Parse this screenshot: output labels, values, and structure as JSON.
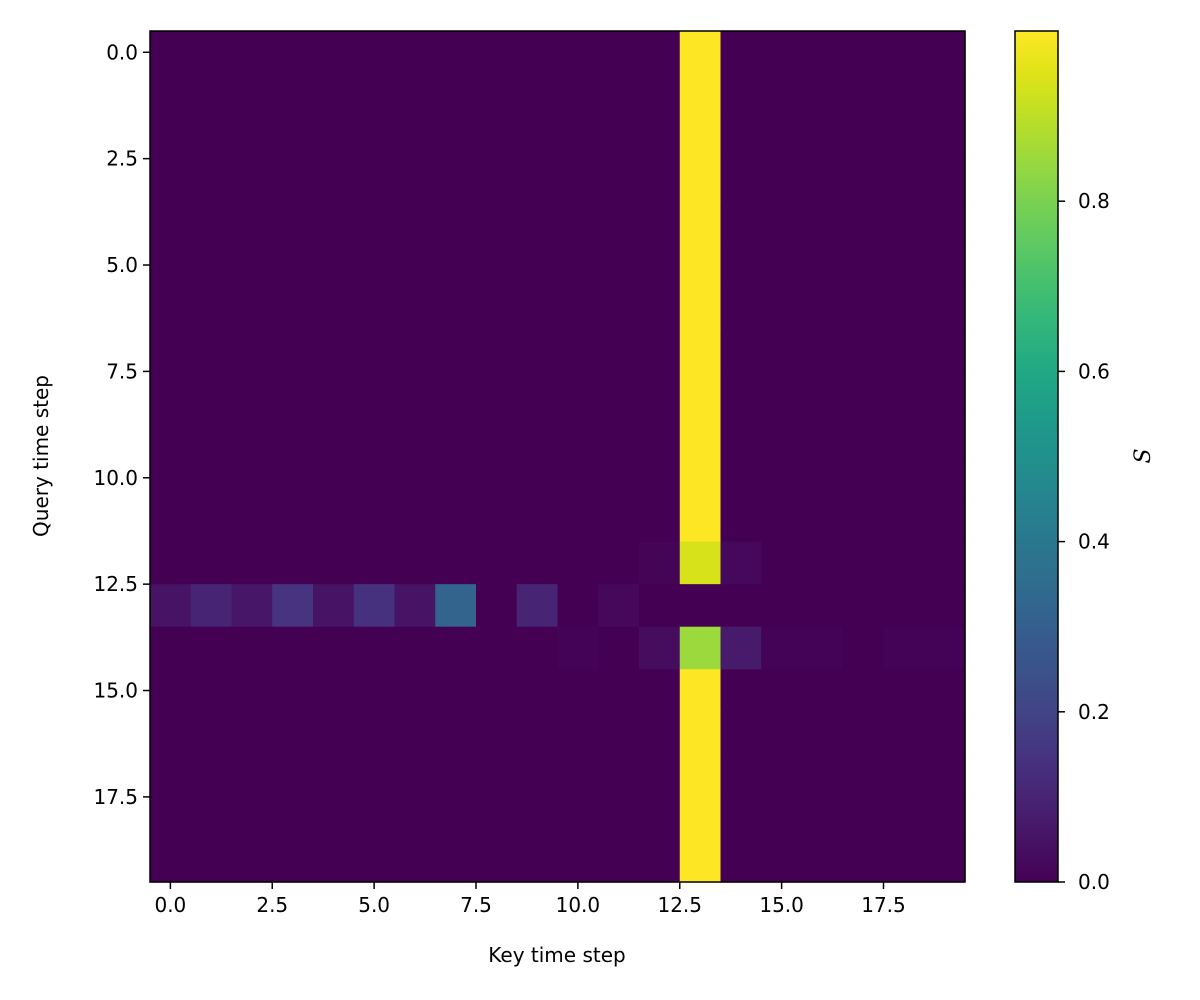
{
  "chart_data": {
    "type": "heatmap",
    "title": "",
    "xlabel": "Key time step",
    "ylabel": "Query time step",
    "colorbar_label": "S",
    "colormap": "viridis",
    "x_range": [
      -0.5,
      19.5
    ],
    "y_range": [
      -0.5,
      19.5
    ],
    "y_inverted": true,
    "x_ticks": [
      "0.0",
      "2.5",
      "5.0",
      "7.5",
      "10.0",
      "12.5",
      "15.0",
      "17.5"
    ],
    "y_ticks": [
      "0.0",
      "2.5",
      "5.0",
      "7.5",
      "10.0",
      "12.5",
      "15.0",
      "17.5"
    ],
    "colorbar_range": [
      0.0,
      1.0
    ],
    "colorbar_ticks": [
      "0.0",
      "0.2",
      "0.4",
      "0.6",
      "0.8"
    ],
    "grid": false,
    "values": [
      [
        0,
        0,
        0,
        0,
        0,
        0,
        0,
        0,
        0,
        0,
        0,
        0,
        0,
        1.0,
        0,
        0,
        0,
        0,
        0,
        0
      ],
      [
        0,
        0,
        0,
        0,
        0,
        0,
        0,
        0,
        0,
        0,
        0,
        0,
        0,
        1.0,
        0,
        0,
        0,
        0,
        0,
        0
      ],
      [
        0,
        0,
        0,
        0,
        0,
        0,
        0,
        0,
        0,
        0,
        0,
        0,
        0,
        1.0,
        0,
        0,
        0,
        0,
        0,
        0
      ],
      [
        0,
        0,
        0,
        0,
        0,
        0,
        0,
        0,
        0,
        0,
        0,
        0,
        0,
        1.0,
        0,
        0,
        0,
        0,
        0,
        0
      ],
      [
        0,
        0,
        0,
        0,
        0,
        0,
        0,
        0,
        0,
        0,
        0,
        0,
        0,
        1.0,
        0,
        0,
        0,
        0,
        0,
        0
      ],
      [
        0,
        0,
        0,
        0,
        0,
        0,
        0,
        0,
        0,
        0,
        0,
        0,
        0,
        1.0,
        0,
        0,
        0,
        0,
        0,
        0
      ],
      [
        0,
        0,
        0,
        0,
        0,
        0,
        0,
        0,
        0,
        0,
        0,
        0,
        0,
        1.0,
        0,
        0,
        0,
        0,
        0,
        0
      ],
      [
        0,
        0,
        0,
        0,
        0,
        0,
        0,
        0,
        0,
        0,
        0,
        0,
        0,
        1.0,
        0,
        0,
        0,
        0,
        0,
        0
      ],
      [
        0,
        0,
        0,
        0,
        0,
        0,
        0,
        0,
        0,
        0,
        0,
        0,
        0,
        1.0,
        0,
        0,
        0,
        0,
        0,
        0
      ],
      [
        0,
        0,
        0,
        0,
        0,
        0,
        0,
        0,
        0,
        0,
        0,
        0,
        0,
        1.0,
        0,
        0,
        0,
        0,
        0,
        0
      ],
      [
        0,
        0,
        0,
        0,
        0,
        0,
        0,
        0,
        0,
        0,
        0,
        0,
        0,
        1.0,
        0,
        0,
        0,
        0,
        0,
        0
      ],
      [
        0,
        0,
        0,
        0,
        0,
        0,
        0,
        0,
        0,
        0,
        0,
        0,
        0,
        1.0,
        0,
        0,
        0,
        0,
        0,
        0
      ],
      [
        0,
        0,
        0,
        0,
        0,
        0,
        0,
        0,
        0,
        0,
        0,
        0,
        0.01,
        0.94,
        0.02,
        0,
        0,
        0,
        0,
        0
      ],
      [
        0.05,
        0.1,
        0.06,
        0.15,
        0.05,
        0.14,
        0.05,
        0.32,
        0.0,
        0.1,
        0.0,
        0.02,
        0,
        0,
        0,
        0,
        0,
        0,
        0,
        0
      ],
      [
        0,
        0,
        0,
        0,
        0,
        0,
        0,
        0,
        0,
        0,
        0.005,
        0,
        0.03,
        0.85,
        0.07,
        0.005,
        0.005,
        0,
        0.005,
        0.005
      ],
      [
        0,
        0,
        0,
        0,
        0,
        0,
        0,
        0,
        0,
        0,
        0,
        0,
        0,
        1.0,
        0,
        0,
        0,
        0,
        0,
        0
      ],
      [
        0,
        0,
        0,
        0,
        0,
        0,
        0,
        0,
        0,
        0,
        0,
        0,
        0,
        1.0,
        0,
        0,
        0,
        0,
        0,
        0
      ],
      [
        0,
        0,
        0,
        0,
        0,
        0,
        0,
        0,
        0,
        0,
        0,
        0,
        0,
        1.0,
        0,
        0,
        0,
        0,
        0,
        0
      ],
      [
        0,
        0,
        0,
        0,
        0,
        0,
        0,
        0,
        0,
        0,
        0,
        0,
        0,
        1.0,
        0,
        0,
        0,
        0,
        0,
        0
      ],
      [
        0,
        0,
        0,
        0,
        0,
        0,
        0,
        0,
        0,
        0,
        0,
        0,
        0,
        1.0,
        0,
        0,
        0,
        0,
        0,
        0
      ]
    ]
  }
}
